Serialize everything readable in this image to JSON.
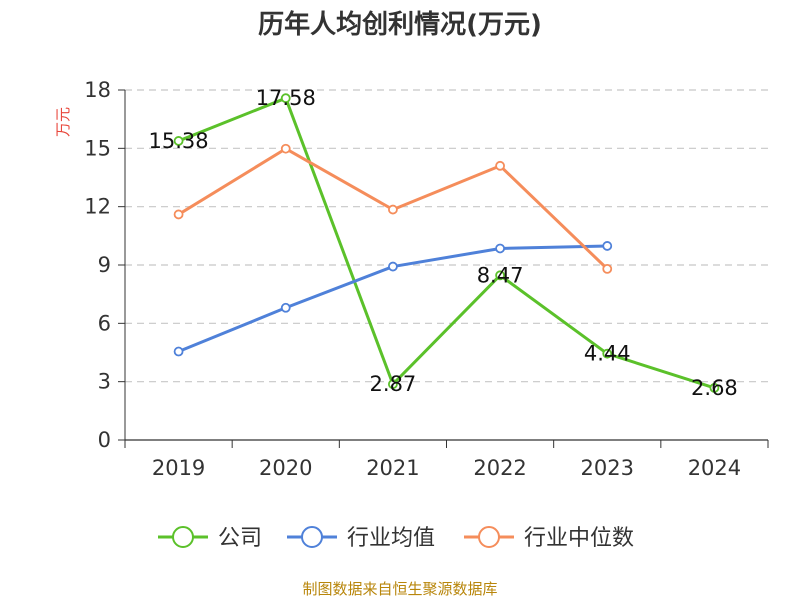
{
  "chart_data": {
    "type": "line",
    "title": "历年人均创利情况(万元)",
    "ylabel": "万元",
    "xlabel": "",
    "categories": [
      "2019",
      "2020",
      "2021",
      "2022",
      "2023",
      "2024"
    ],
    "ylim": [
      0,
      18
    ],
    "yticks": [
      0,
      3,
      6,
      9,
      12,
      15,
      18
    ],
    "grid": "horizontal dashed",
    "legend_position": "bottom",
    "series": [
      {
        "name": "公司",
        "color": "#5bc12a",
        "values": [
          15.38,
          17.58,
          2.87,
          8.47,
          4.44,
          2.68
        ],
        "labels": [
          "15.38",
          "17.58",
          "2.87",
          "8.47",
          "4.44",
          "2.68"
        ]
      },
      {
        "name": "行业均值",
        "color": "#4f81d9",
        "values": [
          4.55,
          6.8,
          8.92,
          9.85,
          9.98,
          null
        ]
      },
      {
        "name": "行业中位数",
        "color": "#f58d5b",
        "values": [
          11.6,
          14.98,
          11.85,
          14.1,
          8.8,
          null
        ]
      }
    ]
  },
  "source": "制图数据来自恒生聚源数据库"
}
